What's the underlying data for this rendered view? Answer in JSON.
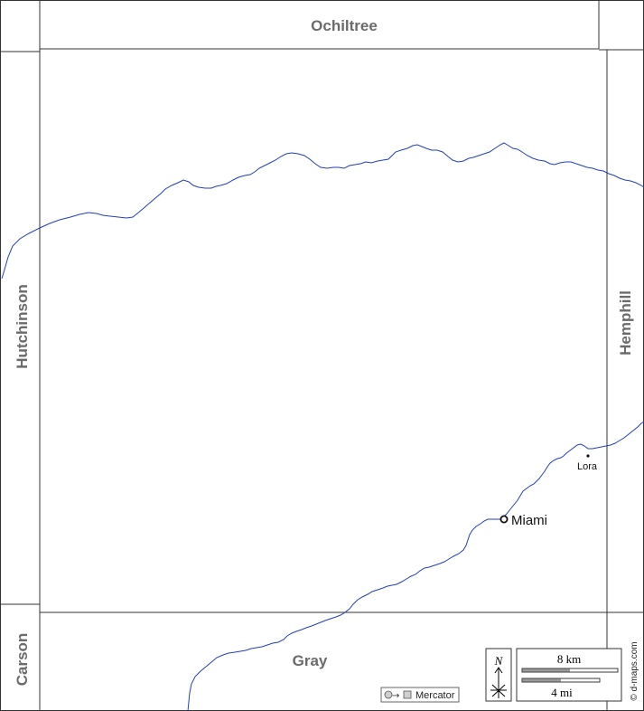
{
  "map": {
    "colors": {
      "river": "#1f3fbf",
      "border": "#333333",
      "county_label": "#6b6b6b"
    },
    "counties": {
      "north": "Ochiltree",
      "west": "Hutchinson",
      "east": "Hemphill",
      "south": "Gray",
      "southwest": "Carson"
    },
    "places": {
      "seat": "Miami",
      "town": "Lora"
    },
    "scale": {
      "km": "8 km",
      "mi": "4 mi"
    },
    "north_arrow": "N",
    "projection": "Mercator",
    "credit": "© d-maps.com"
  }
}
